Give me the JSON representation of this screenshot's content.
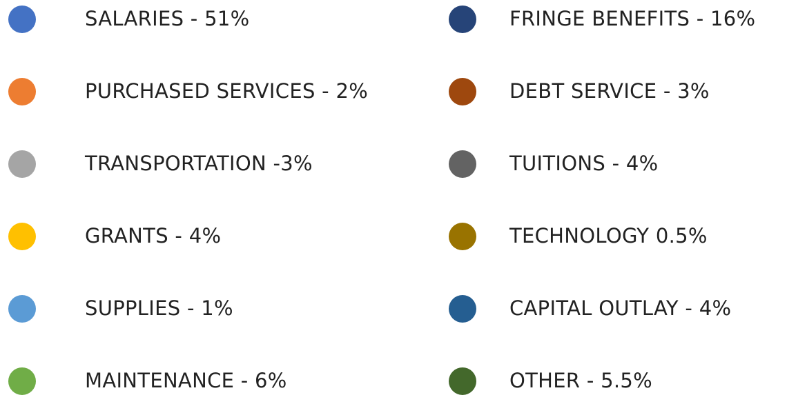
{
  "legend": [
    {
      "label": "SALARIES - 51%",
      "color": "#4472c4"
    },
    {
      "label": "FRINGE BENEFITS - 16%",
      "color": "#264478"
    },
    {
      "label": "PURCHASED SERVICES - 2%",
      "color": "#ed7d31"
    },
    {
      "label": "DEBT SERVICE - 3%",
      "color": "#9e480e"
    },
    {
      "label": "TRANSPORTATION -3%",
      "color": "#a5a5a5"
    },
    {
      "label": "TUITIONS - 4%",
      "color": "#636363"
    },
    {
      "label": "GRANTS - 4%",
      "color": "#ffc000"
    },
    {
      "label": "TECHNOLOGY 0.5%",
      "color": "#997300"
    },
    {
      "label": "SUPPLIES - 1%",
      "color": "#5b9bd5"
    },
    {
      "label": "CAPITAL OUTLAY - 4%",
      "color": "#255e91"
    },
    {
      "label": "MAINTENANCE - 6%",
      "color": "#70ad47"
    },
    {
      "label": "OTHER - 5.5%",
      "color": "#43682b"
    }
  ]
}
